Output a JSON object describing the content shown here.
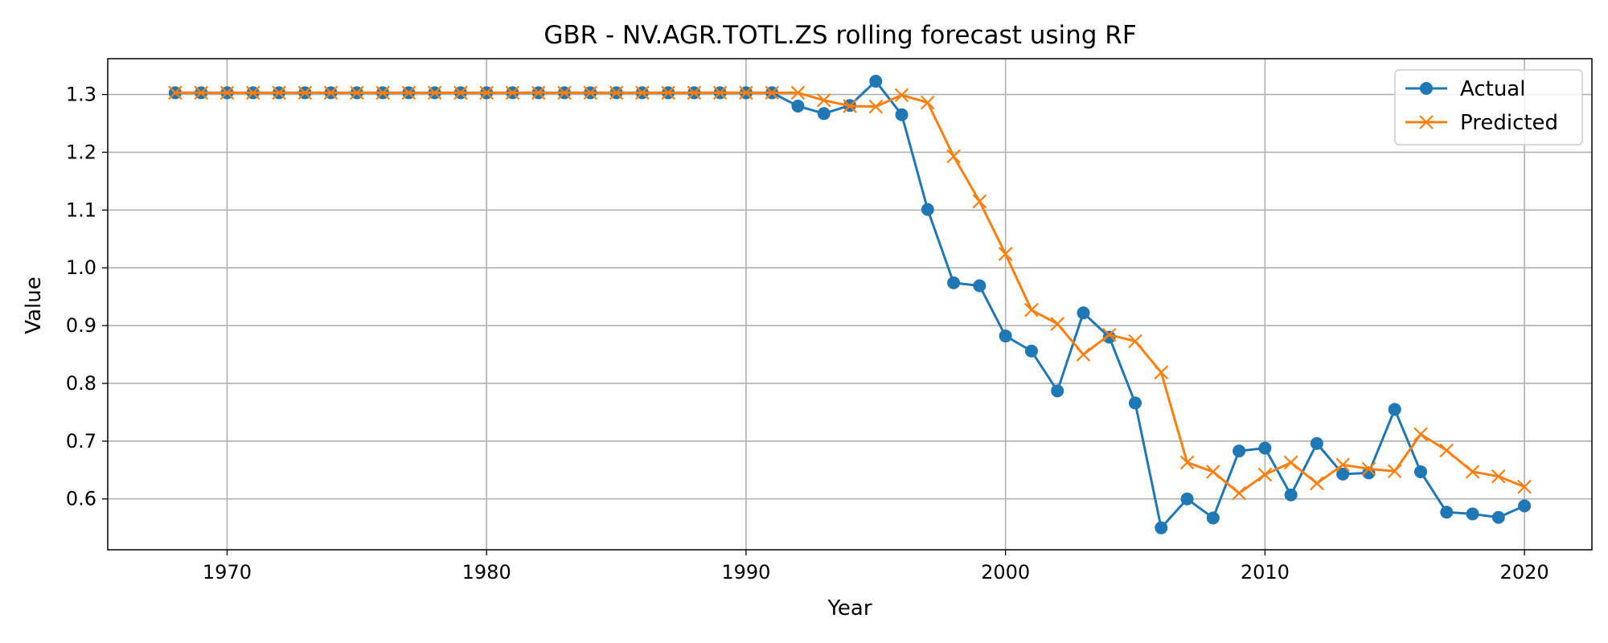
{
  "chart_data": {
    "type": "line",
    "title": "GBR - NV.AGR.TOTL.ZS rolling forecast using RF",
    "xlabel": "Year",
    "ylabel": "Value",
    "xlim": [
      1965.4,
      2022.6
    ],
    "ylim": [
      0.512,
      1.362
    ],
    "xticks": [
      1970,
      1980,
      1990,
      2000,
      2010,
      2020
    ],
    "yticks": [
      0.6,
      0.7,
      0.8,
      0.9,
      1.0,
      1.1,
      1.2,
      1.3
    ],
    "yticklabels": [
      "0.6",
      "0.7",
      "0.8",
      "0.9",
      "1.0",
      "1.1",
      "1.2",
      "1.3"
    ],
    "grid": true,
    "legend_position": "top-right",
    "x": [
      1968,
      1969,
      1970,
      1971,
      1972,
      1973,
      1974,
      1975,
      1976,
      1977,
      1978,
      1979,
      1980,
      1981,
      1982,
      1983,
      1984,
      1985,
      1986,
      1987,
      1988,
      1989,
      1990,
      1991,
      1992,
      1993,
      1994,
      1995,
      1996,
      1997,
      1998,
      1999,
      2000,
      2001,
      2002,
      2003,
      2004,
      2005,
      2006,
      2007,
      2008,
      2009,
      2010,
      2011,
      2012,
      2013,
      2014,
      2015,
      2016,
      2017,
      2018,
      2019,
      2020
    ],
    "series": [
      {
        "name": "Actual",
        "color": "#1f77b4",
        "marker": "circle",
        "values": [
          1.303,
          1.303,
          1.303,
          1.303,
          1.303,
          1.303,
          1.303,
          1.303,
          1.303,
          1.303,
          1.303,
          1.303,
          1.303,
          1.303,
          1.303,
          1.303,
          1.303,
          1.303,
          1.303,
          1.303,
          1.303,
          1.303,
          1.303,
          1.303,
          1.28,
          1.267,
          1.281,
          1.323,
          1.265,
          1.101,
          0.974,
          0.969,
          0.882,
          0.856,
          0.787,
          0.922,
          0.88,
          0.766,
          0.55,
          0.6,
          0.567,
          0.683,
          0.688,
          0.607,
          0.696,
          0.643,
          0.645,
          0.755,
          0.647,
          0.577,
          0.574,
          0.568,
          0.588
        ]
      },
      {
        "name": "Predicted",
        "color": "#ff7f0e",
        "marker": "x",
        "values": [
          1.303,
          1.303,
          1.303,
          1.303,
          1.303,
          1.303,
          1.303,
          1.303,
          1.303,
          1.303,
          1.303,
          1.303,
          1.303,
          1.303,
          1.303,
          1.303,
          1.303,
          1.303,
          1.303,
          1.303,
          1.303,
          1.303,
          1.303,
          1.303,
          1.303,
          1.29,
          1.28,
          1.279,
          1.299,
          1.286,
          1.193,
          1.115,
          1.024,
          0.927,
          0.903,
          0.85,
          0.884,
          0.873,
          0.819,
          0.663,
          0.647,
          0.61,
          0.642,
          0.663,
          0.627,
          0.659,
          0.652,
          0.648,
          0.712,
          0.684,
          0.647,
          0.639,
          0.621
        ]
      }
    ]
  }
}
